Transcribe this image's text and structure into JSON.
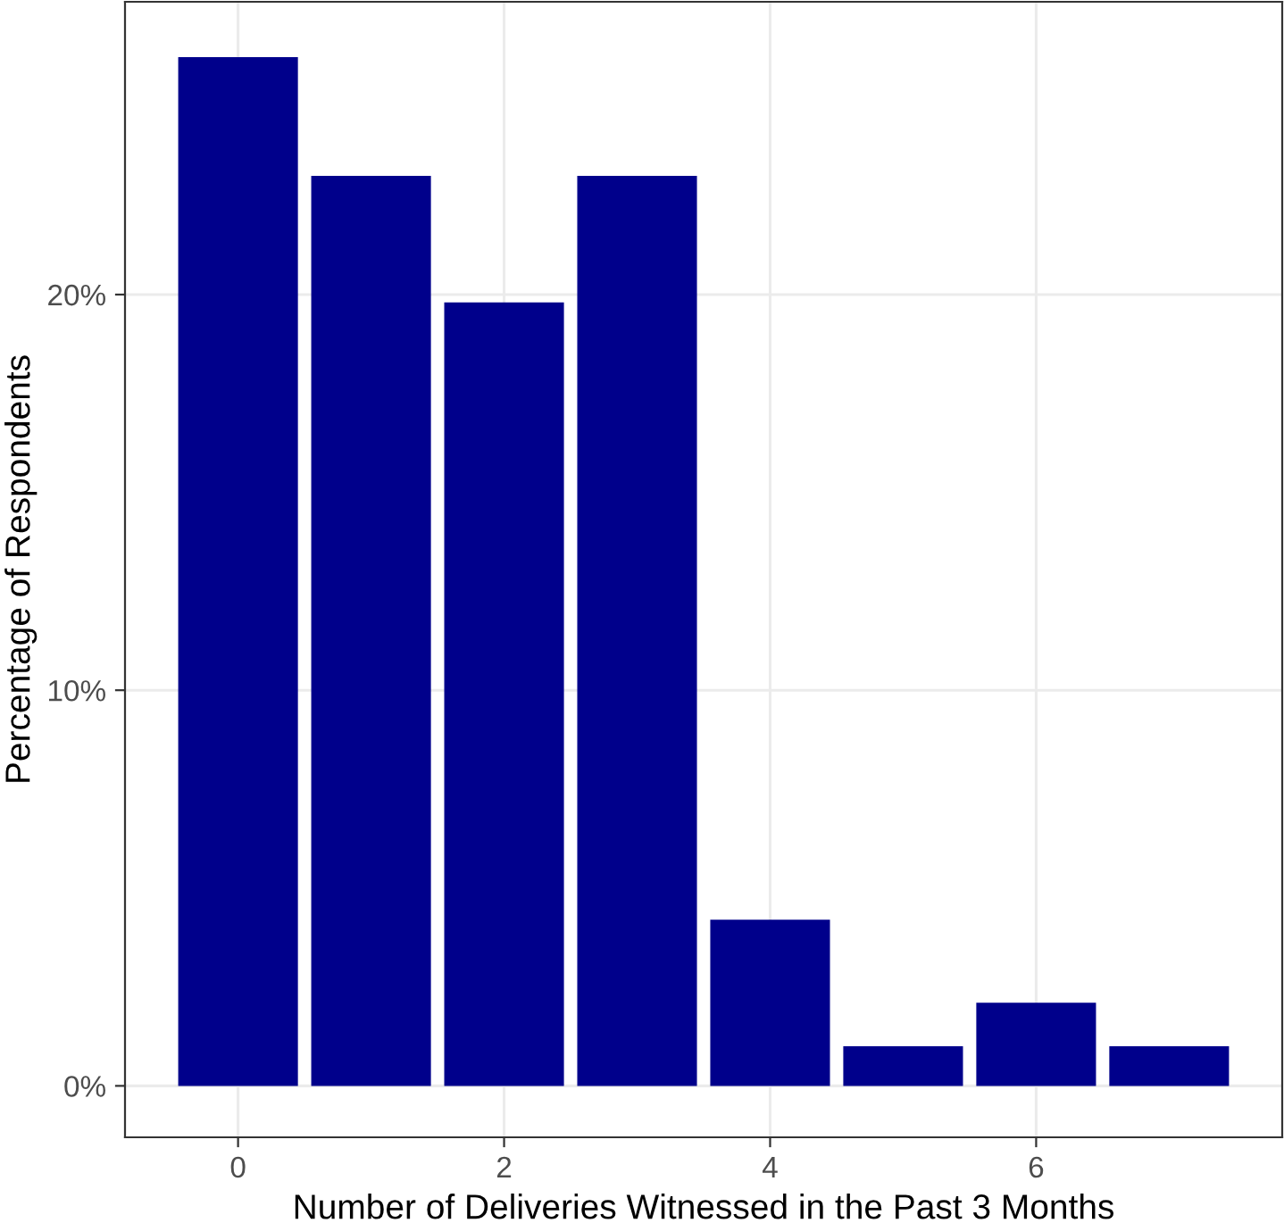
{
  "chart_data": {
    "type": "bar",
    "xlabel": "Number of Deliveries Witnessed in the Past 3 Months",
    "ylabel": "Percentage of Respondents",
    "x": [
      0,
      1,
      2,
      3,
      4,
      5,
      6,
      7
    ],
    "values": [
      26.0,
      23.0,
      19.8,
      23.0,
      4.2,
      1.0,
      2.1,
      1.0
    ],
    "color": "#00008b",
    "xlim": [
      -0.85,
      7.85
    ],
    "xticks": [
      0,
      2,
      4,
      6
    ],
    "ylim": [
      -1.3,
      27.4
    ],
    "yticks": [
      {
        "value": 0,
        "label": "0%"
      },
      {
        "value": 10,
        "label": "10%"
      },
      {
        "value": 20,
        "label": "20%"
      }
    ],
    "grid": true
  }
}
